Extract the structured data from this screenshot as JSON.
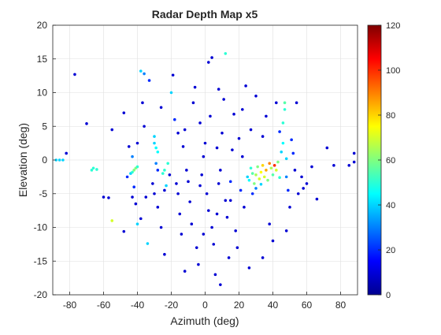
{
  "chart_data": {
    "type": "scatter",
    "title": "Radar Depth Map x5",
    "xlabel": "Azimuth (deg)",
    "ylabel": "Elevation (deg)",
    "xlim": [
      -90,
      90
    ],
    "ylim": [
      -20,
      20
    ],
    "xticks": [
      -80,
      -60,
      -40,
      -20,
      0,
      20,
      40,
      60,
      80
    ],
    "yticks": [
      -20,
      -15,
      -10,
      -5,
      0,
      5,
      10,
      15,
      20
    ],
    "grid": true,
    "colorbar": {
      "colormap": "jet",
      "clim": [
        0,
        120
      ],
      "ticks": [
        0,
        20,
        40,
        60,
        80,
        100,
        120
      ],
      "placement": "right"
    },
    "points": [
      {
        "x": -88,
        "y": 0,
        "c": 40
      },
      {
        "x": -86,
        "y": 0,
        "c": 40
      },
      {
        "x": -84,
        "y": 0,
        "c": 40
      },
      {
        "x": -82,
        "y": 1,
        "c": 10
      },
      {
        "x": -77,
        "y": 12.7,
        "c": 10
      },
      {
        "x": -70,
        "y": 5.4,
        "c": 10
      },
      {
        "x": -67,
        "y": -1.5,
        "c": 50
      },
      {
        "x": -66,
        "y": -1.2,
        "c": 50
      },
      {
        "x": -64,
        "y": -1.4,
        "c": 50
      },
      {
        "x": -60,
        "y": -5.5,
        "c": 10
      },
      {
        "x": -57,
        "y": -5.6,
        "c": 10
      },
      {
        "x": -55,
        "y": -9,
        "c": 70
      },
      {
        "x": -55,
        "y": 4.5,
        "c": 10
      },
      {
        "x": -48,
        "y": 7,
        "c": 10
      },
      {
        "x": -45,
        "y": 2,
        "c": 10
      },
      {
        "x": -48,
        "y": -10.6,
        "c": 10
      },
      {
        "x": -46,
        "y": -2.5,
        "c": 20
      },
      {
        "x": -44,
        "y": -2,
        "c": 40
      },
      {
        "x": -43,
        "y": -1.8,
        "c": 50
      },
      {
        "x": -42,
        "y": -1.5,
        "c": 60
      },
      {
        "x": -41,
        "y": -1.2,
        "c": 60
      },
      {
        "x": -40,
        "y": -1.0,
        "c": 50
      },
      {
        "x": -43,
        "y": 0.5,
        "c": 30
      },
      {
        "x": -42,
        "y": -4,
        "c": 20
      },
      {
        "x": -43,
        "y": -5.5,
        "c": 10
      },
      {
        "x": -41,
        "y": -6.5,
        "c": 10
      },
      {
        "x": -40,
        "y": -9.5,
        "c": 40
      },
      {
        "x": -38,
        "y": -8.7,
        "c": 10
      },
      {
        "x": -40,
        "y": 2.5,
        "c": 10
      },
      {
        "x": -38,
        "y": 13.2,
        "c": 40
      },
      {
        "x": -36,
        "y": 12.8,
        "c": 30
      },
      {
        "x": -37,
        "y": 8.5,
        "c": 10
      },
      {
        "x": -36,
        "y": 5,
        "c": 10
      },
      {
        "x": -35,
        "y": -5.5,
        "c": 10
      },
      {
        "x": -34,
        "y": -12.4,
        "c": 40
      },
      {
        "x": -33,
        "y": 11.8,
        "c": 20
      },
      {
        "x": -30,
        "y": 3.5,
        "c": 40
      },
      {
        "x": -30,
        "y": 2.5,
        "c": 40
      },
      {
        "x": -29,
        "y": 1.8,
        "c": 45
      },
      {
        "x": -28,
        "y": 1.2,
        "c": 45
      },
      {
        "x": -29,
        "y": -0.5,
        "c": 30
      },
      {
        "x": -28,
        "y": -1.5,
        "c": 20
      },
      {
        "x": -31,
        "y": -3.5,
        "c": 10
      },
      {
        "x": -30,
        "y": -5,
        "c": 10
      },
      {
        "x": -28,
        "y": -7,
        "c": 10
      },
      {
        "x": -26,
        "y": -10,
        "c": 10
      },
      {
        "x": -24,
        "y": -14,
        "c": 10
      },
      {
        "x": -26,
        "y": 7.8,
        "c": 10
      },
      {
        "x": -25,
        "y": -2,
        "c": 50
      },
      {
        "x": -24,
        "y": -1.5,
        "c": 50
      },
      {
        "x": -23,
        "y": -3.8,
        "c": 40
      },
      {
        "x": -22,
        "y": -0.5,
        "c": 50
      },
      {
        "x": -21,
        "y": -2.2,
        "c": 10
      },
      {
        "x": -20,
        "y": 10,
        "c": 40
      },
      {
        "x": -19,
        "y": 12.6,
        "c": 10
      },
      {
        "x": -18,
        "y": 6,
        "c": 20
      },
      {
        "x": -17,
        "y": -3.5,
        "c": 10
      },
      {
        "x": -16,
        "y": -5,
        "c": 10
      },
      {
        "x": -15,
        "y": -8,
        "c": 10
      },
      {
        "x": -14,
        "y": -11,
        "c": 10
      },
      {
        "x": -13,
        "y": 2,
        "c": 10
      },
      {
        "x": -12,
        "y": 4.5,
        "c": 10
      },
      {
        "x": -11,
        "y": -1.5,
        "c": 10
      },
      {
        "x": -10,
        "y": -3.2,
        "c": 10
      },
      {
        "x": -9,
        "y": -6.2,
        "c": 10
      },
      {
        "x": -8,
        "y": -9.5,
        "c": 10
      },
      {
        "x": -7,
        "y": 8.5,
        "c": 10
      },
      {
        "x": -6,
        "y": 10.8,
        "c": 10
      },
      {
        "x": -5,
        "y": -13,
        "c": 10
      },
      {
        "x": -4,
        "y": -15.5,
        "c": 10
      },
      {
        "x": -3,
        "y": -3.8,
        "c": 10
      },
      {
        "x": -2,
        "y": -2.2,
        "c": 10
      },
      {
        "x": -1,
        "y": 0.5,
        "c": 10
      },
      {
        "x": 0,
        "y": 2.5,
        "c": 10
      },
      {
        "x": 1,
        "y": -5,
        "c": 10
      },
      {
        "x": 2,
        "y": -7.5,
        "c": 10
      },
      {
        "x": 2,
        "y": 14.5,
        "c": 10
      },
      {
        "x": 4,
        "y": 15.2,
        "c": 10
      },
      {
        "x": 3,
        "y": 6.5,
        "c": 10
      },
      {
        "x": 4,
        "y": -10,
        "c": 10
      },
      {
        "x": 5,
        "y": -12.5,
        "c": 10
      },
      {
        "x": 6,
        "y": -17,
        "c": 10
      },
      {
        "x": 7,
        "y": 1.8,
        "c": 10
      },
      {
        "x": 8,
        "y": -3.5,
        "c": 10
      },
      {
        "x": 9,
        "y": -1.5,
        "c": 10
      },
      {
        "x": 10,
        "y": 4,
        "c": 10
      },
      {
        "x": 11,
        "y": 9,
        "c": 10
      },
      {
        "x": 12,
        "y": 15.8,
        "c": 50
      },
      {
        "x": 12,
        "y": -6,
        "c": 10
      },
      {
        "x": 13,
        "y": -8.5,
        "c": 10
      },
      {
        "x": 14,
        "y": -14.5,
        "c": 10
      },
      {
        "x": 15,
        "y": -3.2,
        "c": 20
      },
      {
        "x": 16,
        "y": 1.5,
        "c": 10
      },
      {
        "x": 17,
        "y": 6.8,
        "c": 10
      },
      {
        "x": 18,
        "y": -10.5,
        "c": 10
      },
      {
        "x": 19,
        "y": -13,
        "c": 10
      },
      {
        "x": 20,
        "y": 3.2,
        "c": 10
      },
      {
        "x": 21,
        "y": -4.5,
        "c": 20
      },
      {
        "x": 22,
        "y": 0.5,
        "c": 10
      },
      {
        "x": 23,
        "y": -7,
        "c": 10
      },
      {
        "x": 24,
        "y": 11,
        "c": 10
      },
      {
        "x": 25,
        "y": -2.5,
        "c": 40
      },
      {
        "x": 26,
        "y": -3,
        "c": 45
      },
      {
        "x": 27,
        "y": -1.2,
        "c": 50
      },
      {
        "x": 28,
        "y": -2,
        "c": 55
      },
      {
        "x": 29,
        "y": -3.5,
        "c": 60
      },
      {
        "x": 30,
        "y": -2.2,
        "c": 65
      },
      {
        "x": 31,
        "y": -1,
        "c": 60
      },
      {
        "x": 32,
        "y": -2.8,
        "c": 70
      },
      {
        "x": 33,
        "y": -1.8,
        "c": 75
      },
      {
        "x": 34,
        "y": -0.8,
        "c": 80
      },
      {
        "x": 35,
        "y": -2.5,
        "c": 70
      },
      {
        "x": 36,
        "y": -1.5,
        "c": 85
      },
      {
        "x": 37,
        "y": -3,
        "c": 60
      },
      {
        "x": 38,
        "y": -0.5,
        "c": 90
      },
      {
        "x": 39,
        "y": -1.2,
        "c": 65
      },
      {
        "x": 40,
        "y": -2.2,
        "c": 55
      },
      {
        "x": 41,
        "y": -0.8,
        "c": 100
      },
      {
        "x": 42,
        "y": -1.5,
        "c": 70
      },
      {
        "x": 43,
        "y": -0.3,
        "c": 60
      },
      {
        "x": 44,
        "y": -2.6,
        "c": 50
      },
      {
        "x": 33,
        "y": -3.6,
        "c": 40
      },
      {
        "x": 30,
        "y": -4.2,
        "c": 30
      },
      {
        "x": 28,
        "y": -5,
        "c": 20
      },
      {
        "x": 34,
        "y": 3.5,
        "c": 10
      },
      {
        "x": 36,
        "y": 6.5,
        "c": 10
      },
      {
        "x": 38,
        "y": -9.5,
        "c": 10
      },
      {
        "x": 40,
        "y": -12,
        "c": 10
      },
      {
        "x": 42,
        "y": 8.5,
        "c": 10
      },
      {
        "x": 44,
        "y": 4.2,
        "c": 20
      },
      {
        "x": 45,
        "y": 1.2,
        "c": 40
      },
      {
        "x": 46,
        "y": 2.5,
        "c": 45
      },
      {
        "x": 46,
        "y": 5.5,
        "c": 50
      },
      {
        "x": 47,
        "y": 7.5,
        "c": 50
      },
      {
        "x": 47,
        "y": 8.5,
        "c": 55
      },
      {
        "x": 48,
        "y": 0.2,
        "c": 40
      },
      {
        "x": 48,
        "y": -2.5,
        "c": 30
      },
      {
        "x": 49,
        "y": -4.5,
        "c": 20
      },
      {
        "x": 50,
        "y": -7,
        "c": 10
      },
      {
        "x": 51,
        "y": 3,
        "c": 20
      },
      {
        "x": 52,
        "y": 1,
        "c": 20
      },
      {
        "x": 53,
        "y": -1.5,
        "c": 10
      },
      {
        "x": 54,
        "y": 8.5,
        "c": 10
      },
      {
        "x": 55,
        "y": -5,
        "c": 10
      },
      {
        "x": 57,
        "y": -2.5,
        "c": 10
      },
      {
        "x": 58,
        "y": -4.2,
        "c": 10
      },
      {
        "x": 60,
        "y": -3.5,
        "c": 10
      },
      {
        "x": 63,
        "y": -1,
        "c": 10
      },
      {
        "x": 66,
        "y": -5.8,
        "c": 10
      },
      {
        "x": 72,
        "y": 1.8,
        "c": 10
      },
      {
        "x": 76,
        "y": -0.8,
        "c": 10
      },
      {
        "x": 85,
        "y": -0.8,
        "c": 10
      },
      {
        "x": 88,
        "y": 1,
        "c": 10
      },
      {
        "x": 88,
        "y": -0.3,
        "c": 10
      },
      {
        "x": -24,
        "y": -4.5,
        "c": 10
      },
      {
        "x": 18,
        "y": -20.5,
        "c": 10
      },
      {
        "x": 9,
        "y": -18.5,
        "c": 10
      },
      {
        "x": -12,
        "y": -16.5,
        "c": 10
      },
      {
        "x": 26,
        "y": -16,
        "c": 10
      },
      {
        "x": 34,
        "y": -14.5,
        "c": 10
      },
      {
        "x": 48,
        "y": -10.5,
        "c": 10
      },
      {
        "x": -1,
        "y": -11,
        "c": 10
      },
      {
        "x": 7,
        "y": -8,
        "c": 10
      },
      {
        "x": 15,
        "y": -6,
        "c": 10
      },
      {
        "x": 22,
        "y": 7.5,
        "c": 10
      },
      {
        "x": 30,
        "y": 9.5,
        "c": 10
      },
      {
        "x": -3,
        "y": 5.5,
        "c": 10
      },
      {
        "x": -16,
        "y": 4,
        "c": 10
      },
      {
        "x": 8,
        "y": 10.5,
        "c": 10
      },
      {
        "x": 27,
        "y": 4.5,
        "c": 10
      }
    ]
  }
}
